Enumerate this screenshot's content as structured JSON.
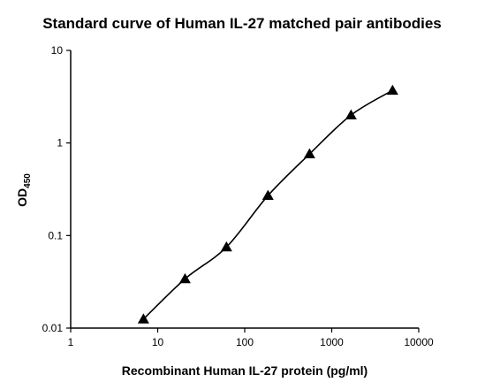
{
  "chart_data": {
    "type": "scatter",
    "title": "Standard curve of Human IL-27 matched pair antibodies",
    "xlabel": "Recombinant Human IL-27 protein (pg/ml)",
    "ylabel_main": "OD",
    "ylabel_sub": "450",
    "x_scale": "log",
    "y_scale": "log",
    "xlim": [
      1,
      10000
    ],
    "ylim": [
      0.01,
      10
    ],
    "x_ticks": [
      1,
      10,
      100,
      1000,
      10000
    ],
    "x_tick_labels": [
      "1",
      "10",
      "100",
      "1000",
      "10000"
    ],
    "y_ticks": [
      0.01,
      0.1,
      1,
      10
    ],
    "y_tick_labels": [
      "0.01",
      "0.1",
      "1",
      "10"
    ],
    "grid": false,
    "marker": "triangle",
    "marker_color": "#000000",
    "fit_curve": true,
    "series": [
      {
        "x": [
          6.86,
          20.6,
          61.7,
          185,
          556,
          1667,
          5000
        ],
        "y": [
          0.0125,
          0.034,
          0.075,
          0.27,
          0.76,
          2.0,
          3.7
        ]
      }
    ]
  }
}
